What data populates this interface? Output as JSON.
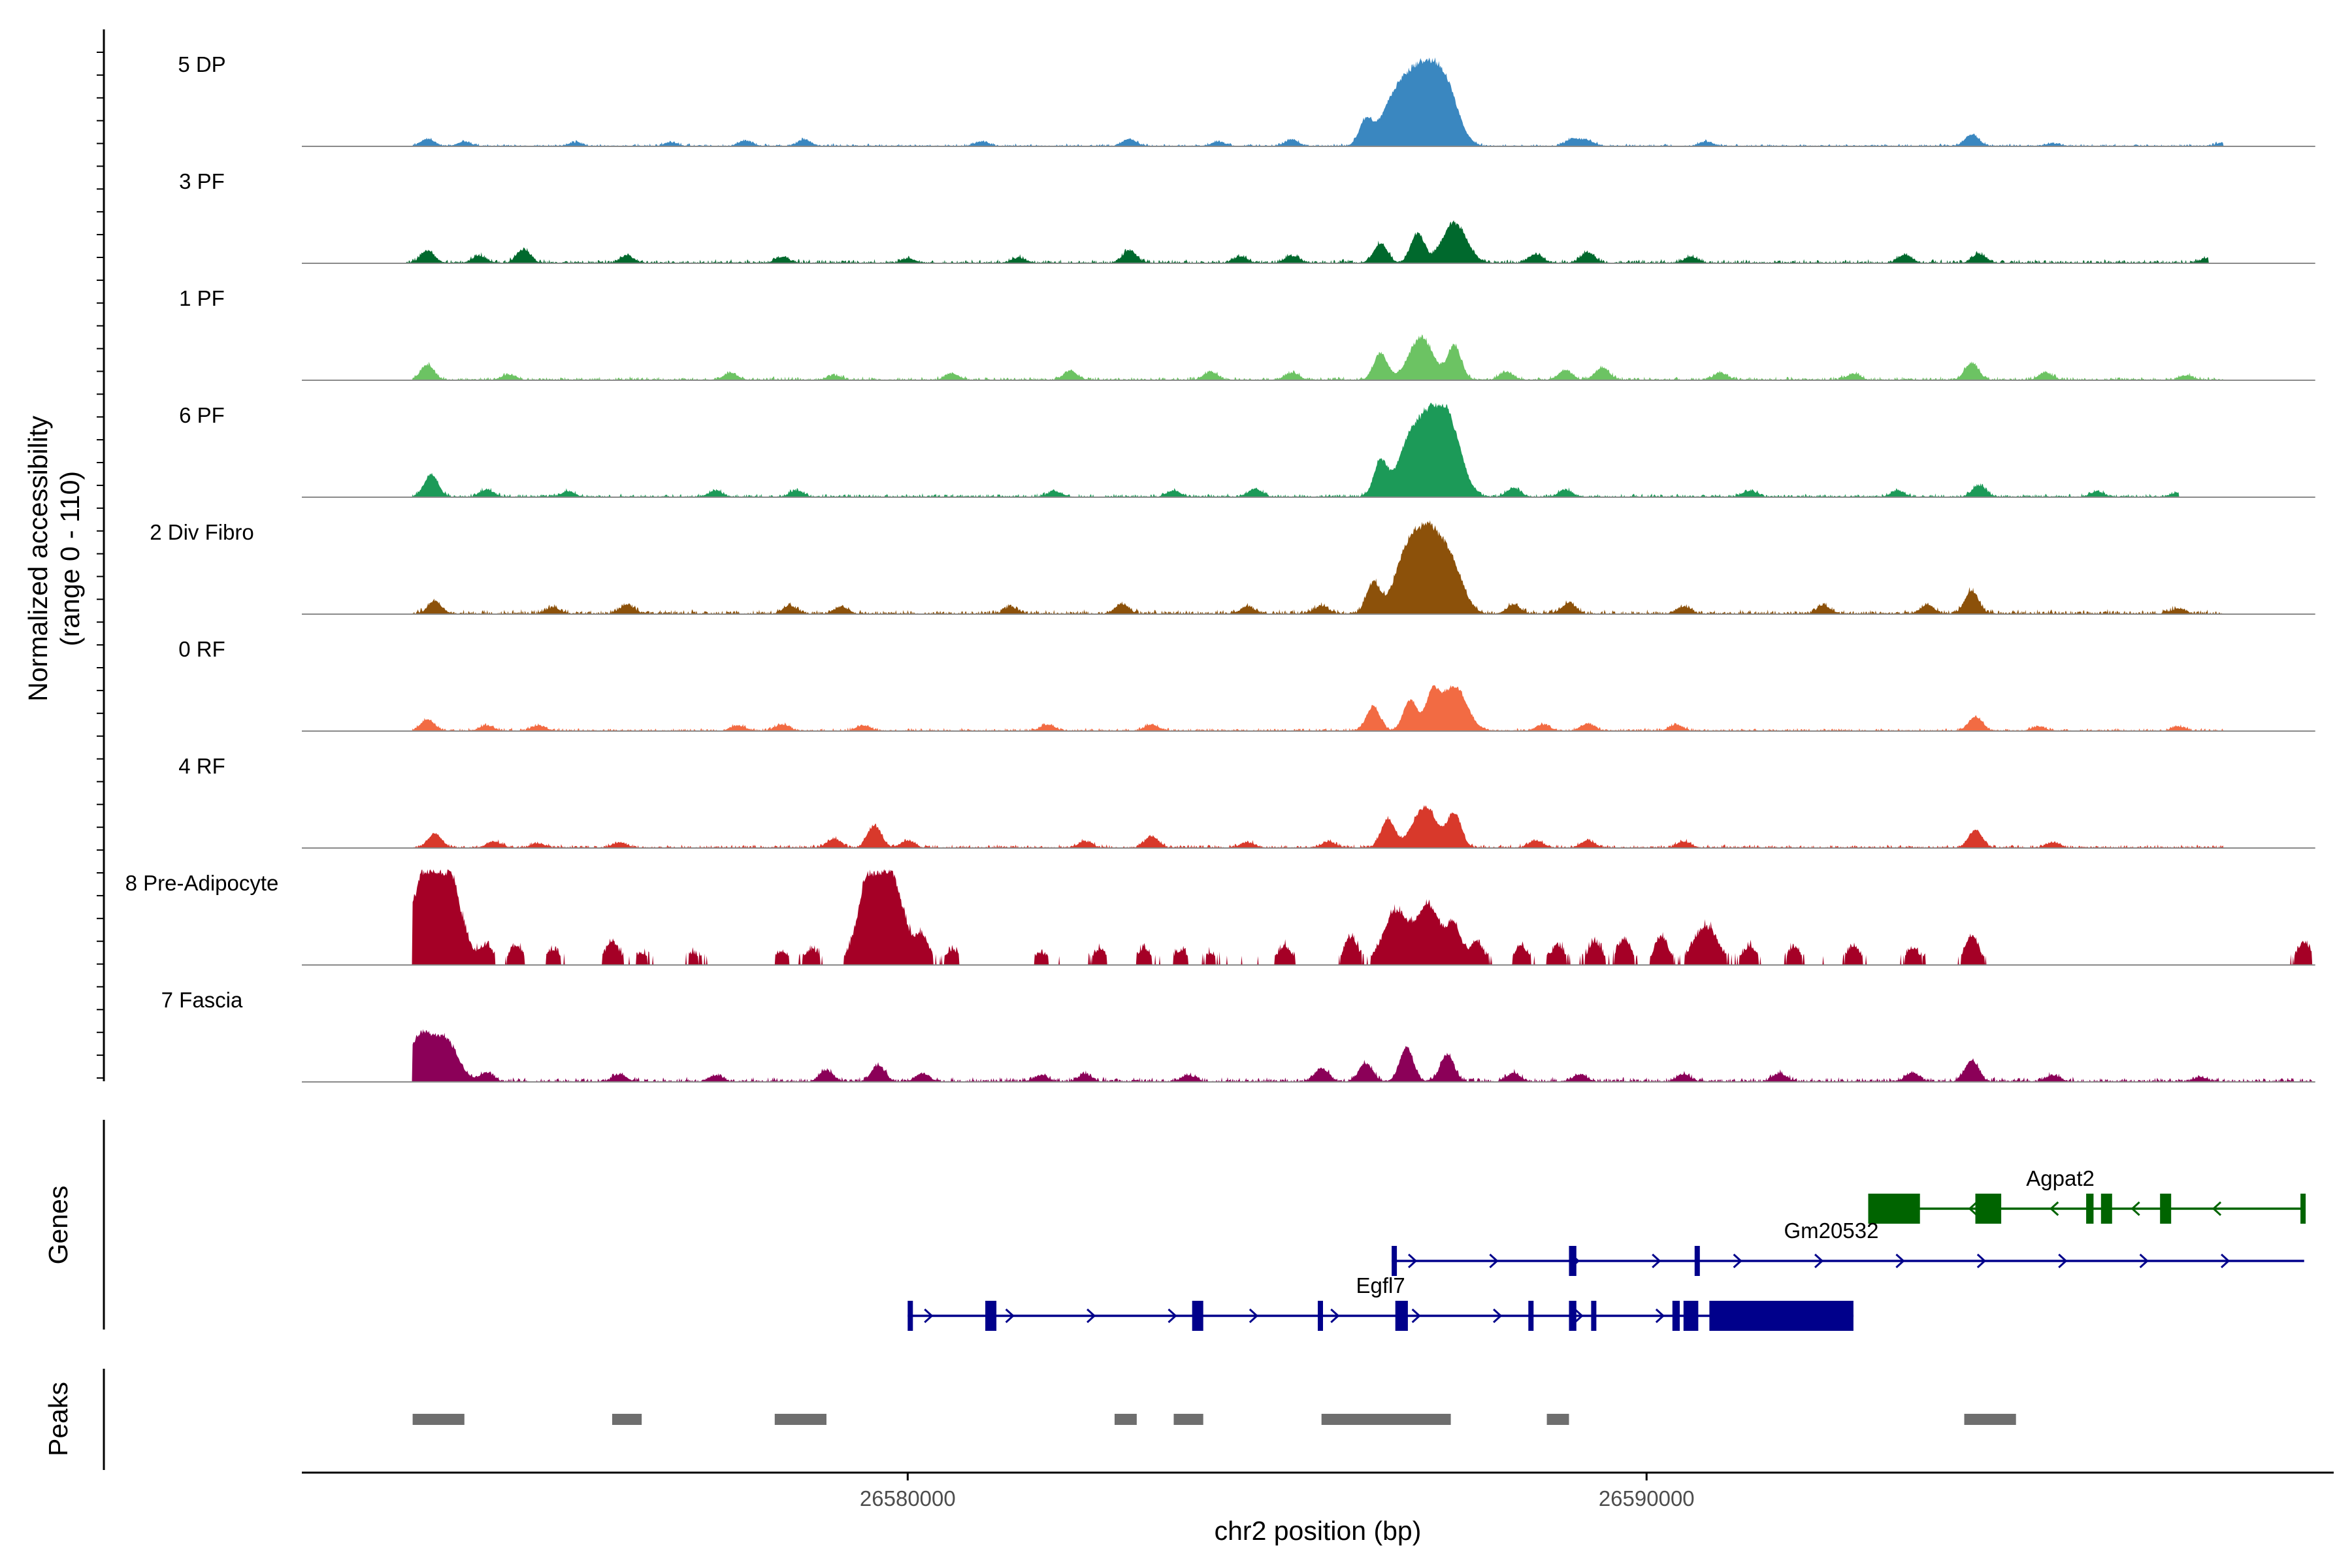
{
  "chart_data": {
    "type": "area",
    "title": "",
    "ylabel_line1": "Normalized accessibility",
    "ylabel_line2": "(range 0 - 110)",
    "ylim": [
      0,
      110
    ],
    "xlabel": "chr2 position (bp)",
    "xlim": [
      26571800,
      26599300
    ],
    "x_ticks": [
      26580000,
      26590000
    ],
    "x_tick_labels": [
      "26580000",
      "26590000"
    ],
    "track_labels": {
      "genes": "Genes",
      "peaks": "Peaks"
    },
    "colors": {
      "axis": "#000000",
      "baseline": "#8a8a8a",
      "peak": "#6e6e6e",
      "gene_forward": "#00008b",
      "gene_reverse": "#006400"
    },
    "series": [
      {
        "name": "5 DP",
        "color": "#3a87c0",
        "peaks": [
          [
            26573500,
            0.08
          ],
          [
            26574000,
            0.05
          ],
          [
            26575500,
            0.04
          ],
          [
            26576800,
            0.04
          ],
          [
            26577800,
            0.06
          ],
          [
            26578600,
            0.07
          ],
          [
            26581000,
            0.05
          ],
          [
            26583000,
            0.08
          ],
          [
            26584200,
            0.05
          ],
          [
            26585200,
            0.07
          ],
          [
            26586200,
            0.28
          ],
          [
            26586550,
            0.42
          ],
          [
            26586800,
            0.55
          ],
          [
            26587050,
            0.63
          ],
          [
            26587300,
            0.58
          ],
          [
            26589000,
            0.08
          ],
          [
            26589200,
            0.06
          ],
          [
            26590800,
            0.05
          ],
          [
            26594400,
            0.13
          ],
          [
            26595500,
            0.03
          ],
          [
            26597800,
            0.04
          ]
        ],
        "baseline_range": [
          26573300,
          26597800
        ],
        "noise": 0.035
      },
      {
        "name": "3 PF",
        "color": "#00692d",
        "peaks": [
          [
            26573500,
            0.14
          ],
          [
            26574200,
            0.08
          ],
          [
            26574800,
            0.15
          ],
          [
            26576200,
            0.08
          ],
          [
            26578300,
            0.07
          ],
          [
            26580000,
            0.05
          ],
          [
            26581500,
            0.06
          ],
          [
            26583000,
            0.14
          ],
          [
            26584500,
            0.07
          ],
          [
            26585200,
            0.08
          ],
          [
            26586400,
            0.22
          ],
          [
            26586900,
            0.33
          ],
          [
            26587400,
            0.45
          ],
          [
            26588500,
            0.1
          ],
          [
            26589200,
            0.12
          ],
          [
            26590600,
            0.07
          ],
          [
            26593500,
            0.09
          ],
          [
            26594500,
            0.1
          ],
          [
            26597600,
            0.06
          ]
        ],
        "baseline_range": [
          26573200,
          26597600
        ],
        "noise": 0.05
      },
      {
        "name": "1 PF",
        "color": "#6cc363",
        "peaks": [
          [
            26573500,
            0.17
          ],
          [
            26574600,
            0.06
          ],
          [
            26577600,
            0.08
          ],
          [
            26579000,
            0.05
          ],
          [
            26580600,
            0.07
          ],
          [
            26582200,
            0.1
          ],
          [
            26584100,
            0.09
          ],
          [
            26585200,
            0.08
          ],
          [
            26586400,
            0.3
          ],
          [
            26586950,
            0.48
          ],
          [
            26587400,
            0.38
          ],
          [
            26588100,
            0.09
          ],
          [
            26588900,
            0.11
          ],
          [
            26589400,
            0.14
          ],
          [
            26591000,
            0.08
          ],
          [
            26592800,
            0.07
          ],
          [
            26594400,
            0.19
          ],
          [
            26595400,
            0.08
          ],
          [
            26597300,
            0.05
          ]
        ],
        "baseline_range": [
          26573300,
          26597800
        ],
        "noise": 0.045
      },
      {
        "name": "6 PF",
        "color": "#1c9a58",
        "peaks": [
          [
            26573550,
            0.25
          ],
          [
            26574300,
            0.08
          ],
          [
            26575400,
            0.06
          ],
          [
            26577400,
            0.07
          ],
          [
            26578500,
            0.07
          ],
          [
            26582000,
            0.06
          ],
          [
            26583600,
            0.07
          ],
          [
            26584700,
            0.09
          ],
          [
            26586400,
            0.4
          ],
          [
            26586800,
            0.62
          ],
          [
            26587100,
            0.75
          ],
          [
            26587350,
            0.68
          ],
          [
            26588200,
            0.1
          ],
          [
            26588900,
            0.08
          ],
          [
            26591400,
            0.07
          ],
          [
            26593400,
            0.07
          ],
          [
            26594500,
            0.13
          ],
          [
            26596100,
            0.06
          ],
          [
            26597200,
            0.05
          ]
        ],
        "baseline_range": [
          26573300,
          26597200
        ],
        "noise": 0.045
      },
      {
        "name": "2 Div Fibro",
        "color": "#8c510a",
        "peaks": [
          [
            26573600,
            0.14
          ],
          [
            26575200,
            0.07
          ],
          [
            26576200,
            0.1
          ],
          [
            26578400,
            0.09
          ],
          [
            26579100,
            0.08
          ],
          [
            26581400,
            0.07
          ],
          [
            26582900,
            0.11
          ],
          [
            26584600,
            0.08
          ],
          [
            26585600,
            0.09
          ],
          [
            26586300,
            0.35
          ],
          [
            26586750,
            0.65
          ],
          [
            26587050,
            0.8
          ],
          [
            26587350,
            0.55
          ],
          [
            26588200,
            0.1
          ],
          [
            26588950,
            0.12
          ],
          [
            26590500,
            0.08
          ],
          [
            26592400,
            0.09
          ],
          [
            26593800,
            0.1
          ],
          [
            26594400,
            0.26
          ],
          [
            26597200,
            0.06
          ]
        ],
        "baseline_range": [
          26573300,
          26597800
        ],
        "noise": 0.06
      },
      {
        "name": "0 RF",
        "color": "#f26b43",
        "peaks": [
          [
            26573500,
            0.13
          ],
          [
            26574300,
            0.06
          ],
          [
            26575000,
            0.06
          ],
          [
            26577700,
            0.06
          ],
          [
            26578300,
            0.07
          ],
          [
            26579400,
            0.06
          ],
          [
            26581900,
            0.07
          ],
          [
            26583300,
            0.07
          ],
          [
            26586300,
            0.27
          ],
          [
            26586800,
            0.35
          ],
          [
            26587100,
            0.4
          ],
          [
            26587400,
            0.5
          ],
          [
            26588600,
            0.07
          ],
          [
            26589200,
            0.08
          ],
          [
            26590400,
            0.07
          ],
          [
            26594450,
            0.16
          ],
          [
            26595300,
            0.05
          ],
          [
            26597200,
            0.05
          ]
        ],
        "baseline_range": [
          26573300,
          26597800
        ],
        "noise": 0.04
      },
      {
        "name": "4 RF",
        "color": "#d8392b",
        "peaks": [
          [
            26573600,
            0.16
          ],
          [
            26574400,
            0.07
          ],
          [
            26575000,
            0.05
          ],
          [
            26576100,
            0.06
          ],
          [
            26579000,
            0.1
          ],
          [
            26579550,
            0.25
          ],
          [
            26580000,
            0.08
          ],
          [
            26582400,
            0.07
          ],
          [
            26583300,
            0.13
          ],
          [
            26584600,
            0.06
          ],
          [
            26585700,
            0.07
          ],
          [
            26586500,
            0.32
          ],
          [
            26587000,
            0.46
          ],
          [
            26587400,
            0.38
          ],
          [
            26588500,
            0.08
          ],
          [
            26589200,
            0.08
          ],
          [
            26590500,
            0.07
          ],
          [
            26594450,
            0.2
          ],
          [
            26595500,
            0.06
          ]
        ],
        "baseline_range": [
          26573300,
          26597800
        ],
        "noise": 0.045
      },
      {
        "name": "8 Pre-Adipocyte",
        "color": "#a50026",
        "peaks": [
          [
            26573400,
            0.7
          ],
          [
            26573650,
            0.92
          ],
          [
            26573850,
            0.55
          ],
          [
            26574300,
            0.2
          ],
          [
            26574700,
            0.2
          ],
          [
            26575200,
            0.16
          ],
          [
            26576000,
            0.25
          ],
          [
            26576400,
            0.12
          ],
          [
            26577100,
            0.12
          ],
          [
            26578300,
            0.14
          ],
          [
            26578700,
            0.16
          ],
          [
            26579500,
            1.0
          ],
          [
            26579800,
            0.85
          ],
          [
            26580200,
            0.3
          ],
          [
            26580600,
            0.16
          ],
          [
            26581800,
            0.12
          ],
          [
            26582600,
            0.16
          ],
          [
            26583200,
            0.17
          ],
          [
            26583700,
            0.15
          ],
          [
            26584100,
            0.12
          ],
          [
            26585100,
            0.2
          ],
          [
            26586000,
            0.3
          ],
          [
            26586600,
            0.58
          ],
          [
            26587050,
            0.65
          ],
          [
            26587400,
            0.4
          ],
          [
            26587700,
            0.25
          ],
          [
            26588300,
            0.2
          ],
          [
            26588800,
            0.2
          ],
          [
            26589300,
            0.25
          ],
          [
            26589700,
            0.28
          ],
          [
            26590200,
            0.3
          ],
          [
            26590800,
            0.42
          ],
          [
            26591400,
            0.2
          ],
          [
            26592000,
            0.18
          ],
          [
            26592800,
            0.2
          ],
          [
            26593600,
            0.18
          ],
          [
            26594400,
            0.32
          ],
          [
            26598900,
            0.25
          ]
        ],
        "baseline_range": [
          26573300,
          26599000
        ],
        "noise": 0.11,
        "blocky": true
      },
      {
        "name": "7 Fascia",
        "color": "#8b0058",
        "peaks": [
          [
            26573400,
            0.5
          ],
          [
            26573750,
            0.45
          ],
          [
            26574300,
            0.1
          ],
          [
            26576100,
            0.08
          ],
          [
            26577400,
            0.07
          ],
          [
            26578900,
            0.12
          ],
          [
            26579600,
            0.18
          ],
          [
            26580200,
            0.09
          ],
          [
            26581800,
            0.07
          ],
          [
            26582400,
            0.08
          ],
          [
            26583800,
            0.07
          ],
          [
            26585600,
            0.15
          ],
          [
            26586200,
            0.2
          ],
          [
            26586750,
            0.38
          ],
          [
            26587300,
            0.3
          ],
          [
            26588200,
            0.09
          ],
          [
            26589100,
            0.08
          ],
          [
            26590500,
            0.08
          ],
          [
            26591800,
            0.09
          ],
          [
            26593600,
            0.1
          ],
          [
            26594400,
            0.24
          ],
          [
            26595500,
            0.07
          ],
          [
            26597500,
            0.05
          ]
        ],
        "baseline_range": [
          26573300,
          26599000
        ],
        "noise": 0.06
      }
    ],
    "genes": [
      {
        "name": "Agpat2",
        "strand": "-",
        "row": 0,
        "color_key": "gene_reverse",
        "start": 26593000,
        "end": 26598900,
        "exons": [
          [
            26593000,
            26593700
          ],
          [
            26594450,
            26594800
          ],
          [
            26595950,
            26596050
          ],
          [
            26596150,
            26596300
          ],
          [
            26596950,
            26597100
          ],
          [
            26598850,
            26598900
          ]
        ],
        "label_x": 26595600
      },
      {
        "name": "Gm20532",
        "strand": "+",
        "row": 1,
        "color_key": "gene_forward",
        "start": 26586550,
        "end": 26598900,
        "exons": [
          [
            26586550,
            26586600
          ],
          [
            26588950,
            26589050
          ],
          [
            26590650,
            26590700
          ]
        ],
        "label_x": 26592500
      },
      {
        "name": "Egfl7",
        "strand": "+",
        "row": 2,
        "color_key": "gene_forward",
        "start": 26580000,
        "end": 26592800,
        "exons": [
          [
            26580000,
            26580050
          ],
          [
            26581050,
            26581200
          ],
          [
            26583850,
            26584000
          ],
          [
            26585550,
            26585620
          ],
          [
            26586600,
            26586770
          ],
          [
            26588400,
            26588420
          ],
          [
            26588950,
            26589050
          ],
          [
            26589250,
            26589320
          ],
          [
            26590350,
            26590450
          ],
          [
            26590500,
            26590700
          ],
          [
            26590850,
            26592800
          ]
        ],
        "label_x": 26586400
      }
    ],
    "peaks_track": [
      [
        26573300,
        26574000
      ],
      [
        26576000,
        26576400
      ],
      [
        26578200,
        26578900
      ],
      [
        26582800,
        26583100
      ],
      [
        26583600,
        26584000
      ],
      [
        26585600,
        26587350
      ],
      [
        26588650,
        26588950
      ],
      [
        26594300,
        26595000
      ]
    ]
  }
}
